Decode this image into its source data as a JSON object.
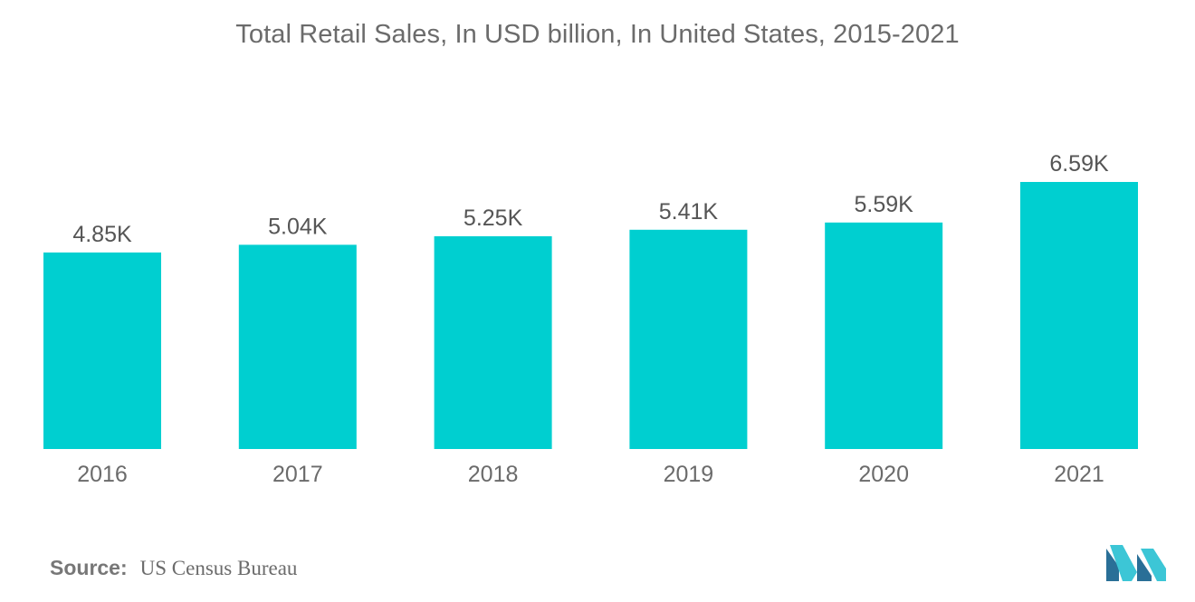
{
  "title": "Total Retail Sales, In USD billion, In United States, 2015-2021",
  "source": {
    "label": "Source:",
    "value": "US Census Bureau"
  },
  "colors": {
    "bar": "#00cfd0",
    "text": "#6b6b6b",
    "logo_dark": "#2a6f97",
    "logo_light": "#3cc6d6"
  },
  "logo": {
    "icon": "mordor-intelligence-logo"
  },
  "chart_data": {
    "type": "bar",
    "categories": [
      "2016",
      "2017",
      "2018",
      "2019",
      "2020",
      "2021"
    ],
    "values": [
      4850,
      5040,
      5250,
      5410,
      5590,
      6590
    ],
    "labels": [
      "4.85K",
      "5.04K",
      "5.25K",
      "5.41K",
      "5.59K",
      "6.59K"
    ],
    "title": "Total Retail Sales, In USD billion, In United States, 2015-2021",
    "xlabel": "",
    "ylabel": "",
    "ylim": [
      0,
      6590
    ],
    "grid": false,
    "legend": "none"
  }
}
